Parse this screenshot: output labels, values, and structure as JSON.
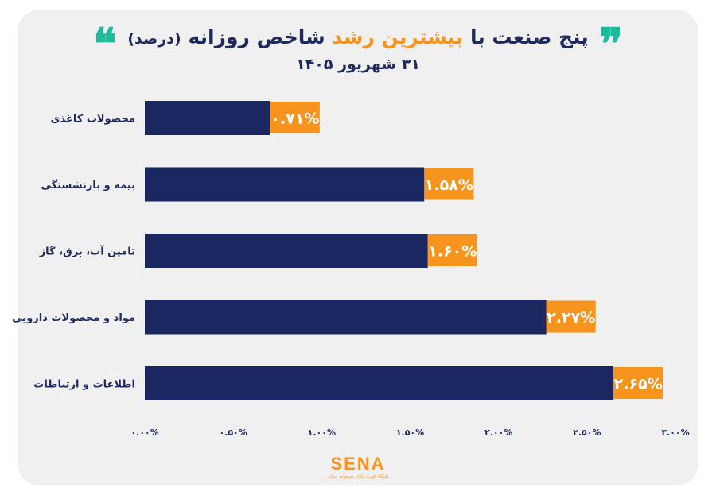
{
  "header": {
    "quote_left": "❝",
    "quote_right": "❞",
    "title_part1": "پنج صنعت با",
    "title_highlight": "بیشترین رشد",
    "title_part2": "شاخص روزانه",
    "title_small": "(درصد)",
    "date": "۳۱ شهریور ۱۴۰۵"
  },
  "logo": {
    "name": "SENA",
    "tagline": "پایگاه خبری بازار سرمایه ایران"
  },
  "colors": {
    "bar": "#1a2760",
    "label_bg": "#f7941d",
    "text": "#1f2a5e",
    "accent": "#1abc9c"
  },
  "chart_data": {
    "type": "bar",
    "orientation": "horizontal",
    "categories": [
      "محصولات کاغذی",
      "بیمه و بازنشستگی",
      "تامین آب، برق، گاز",
      "مواد و محصولات دارویی",
      "اطلاعات و ارتباطات"
    ],
    "values": [
      0.71,
      1.58,
      1.6,
      2.27,
      2.65
    ],
    "value_labels": [
      "۰.۷۱%",
      "۱.۵۸%",
      "۱.۶۰%",
      "۲.۲۷%",
      "۲.۶۵%"
    ],
    "xlim": [
      0,
      3.0
    ],
    "ticks": [
      0,
      0.5,
      1.0,
      1.5,
      2.0,
      2.5,
      3.0
    ],
    "tick_labels": [
      "۰.۰۰%",
      "۰.۵۰%",
      "۱.۰۰%",
      "۱.۵۰%",
      "۲.۰۰%",
      "۲.۵۰%",
      "۳.۰۰%"
    ],
    "grid": false,
    "legend": "none"
  }
}
